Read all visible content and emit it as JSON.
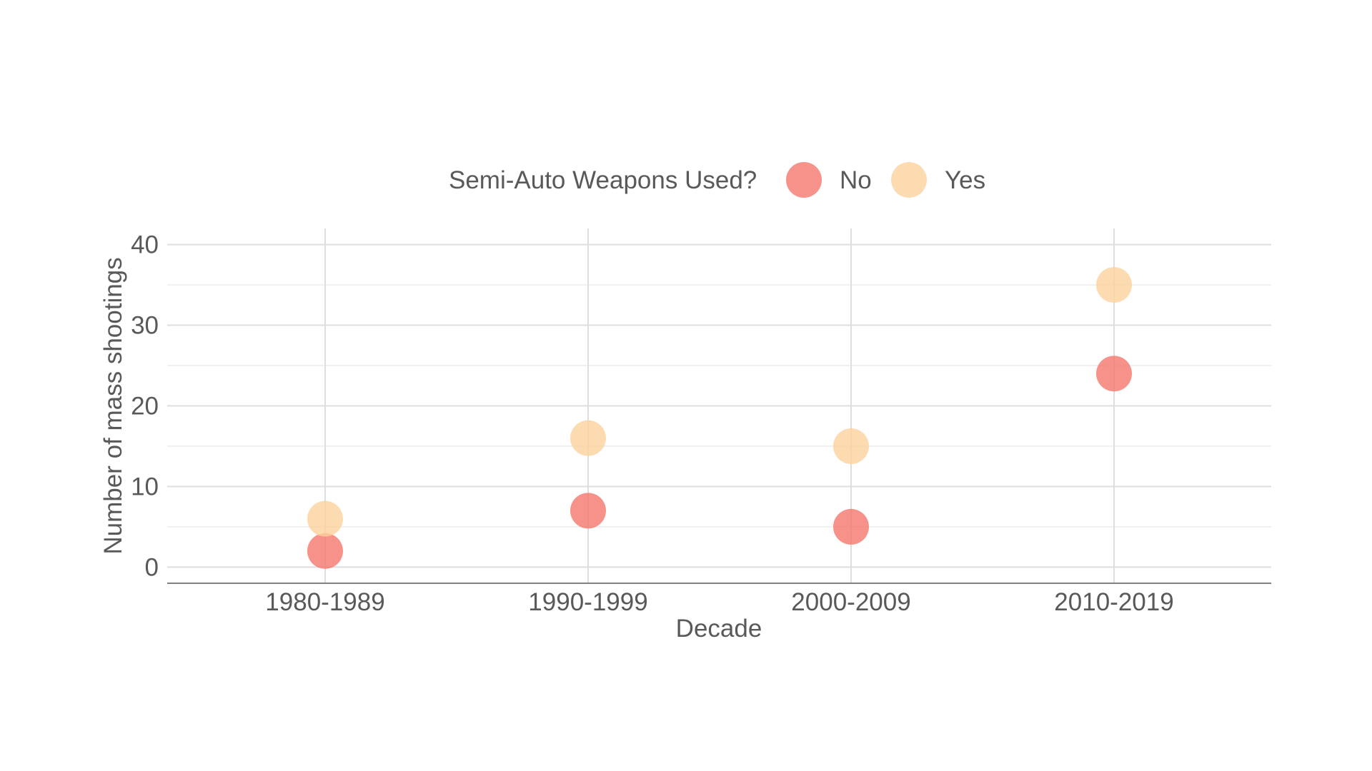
{
  "chart_data": {
    "type": "scatter",
    "title": "",
    "xlabel": "Decade",
    "ylabel": "Number of mass shootings",
    "categories": [
      "1980-1989",
      "1990-1999",
      "2000-2009",
      "2010-2019"
    ],
    "y_ticks": [
      "0",
      "10",
      "20",
      "30",
      "40"
    ],
    "ylim": [
      -2,
      42
    ],
    "grid": true,
    "legend": {
      "title": "Semi-Auto Weapons Used?",
      "position": "top"
    },
    "series": [
      {
        "name": "No",
        "color": "#F4776C",
        "values": [
          2,
          7,
          5,
          24
        ]
      },
      {
        "name": "Yes",
        "color": "#FDD29E",
        "values": [
          6,
          16,
          15,
          35
        ]
      }
    ]
  }
}
